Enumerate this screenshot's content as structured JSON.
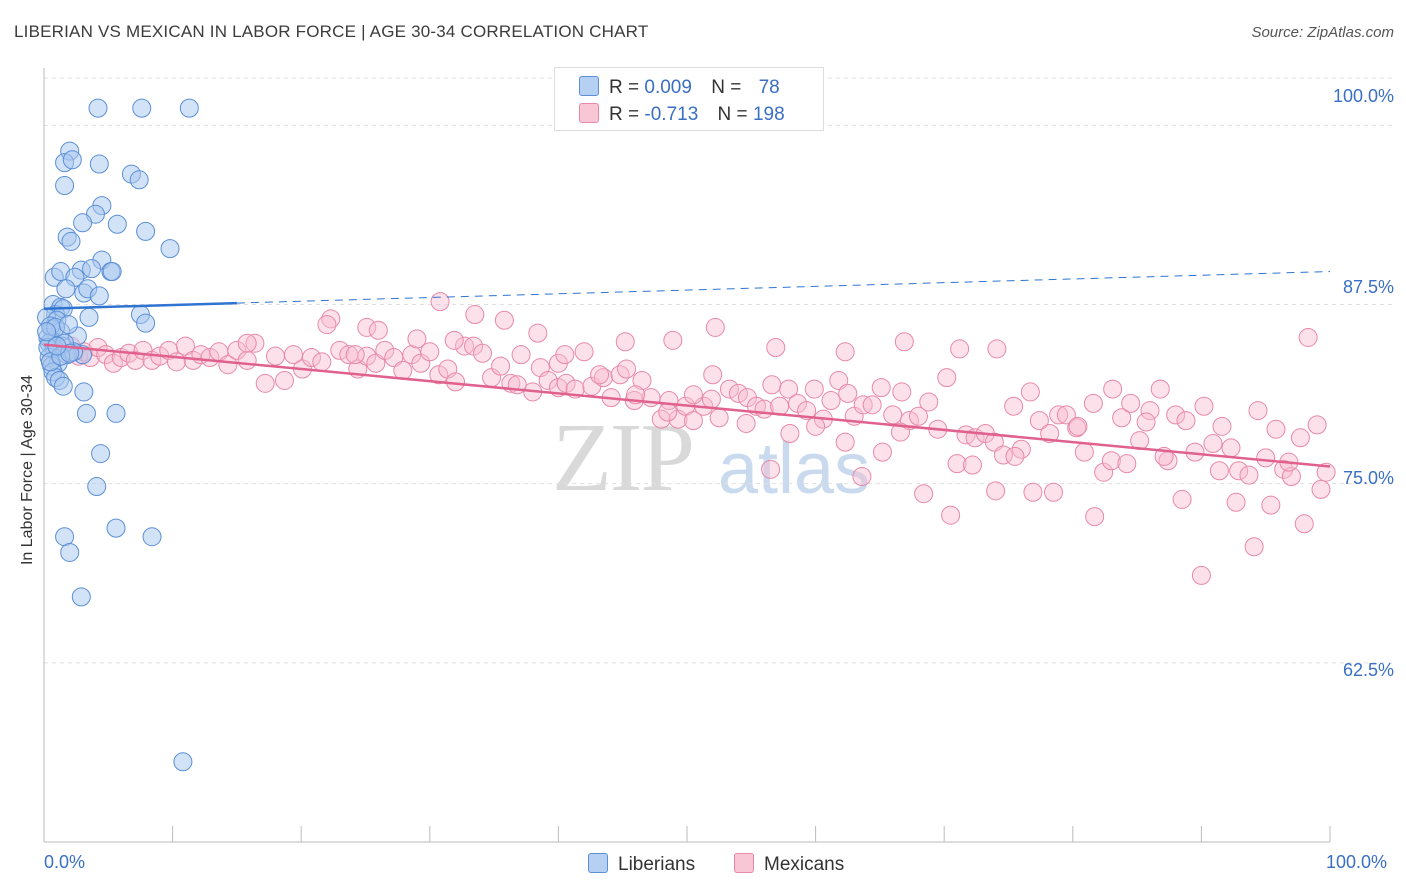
{
  "title": "LIBERIAN VS MEXICAN IN LABOR FORCE | AGE 30-34 CORRELATION CHART",
  "source": "Source: ZipAtlas.com",
  "watermark": {
    "zip": "ZIP",
    "atlas": "atlas"
  },
  "colors": {
    "liberian_fill": "#a8c8f0",
    "liberian_stroke": "#5b8fd6",
    "liberian_line": "#2f74d0",
    "mexican_fill": "#f8bcd0",
    "mexican_stroke": "#e889a8",
    "mexican_line": "#e0608e",
    "tick_text": "#3a6fc4",
    "grid": "#e0e0e0"
  },
  "legend": {
    "rows": [
      {
        "r_label": "R =",
        "r_value": "0.009",
        "n_label": "N =",
        "n_value": "78"
      },
      {
        "r_label": "R =",
        "r_value": "-0.713",
        "n_label": "N =",
        "n_value": "198"
      }
    ]
  },
  "bottom_legend": [
    "Liberians",
    "Mexicans"
  ],
  "chart_data": {
    "type": "scatter",
    "title": "LIBERIAN VS MEXICAN IN LABOR FORCE | AGE 30-34 CORRELATION CHART",
    "xlabel": "",
    "ylabel": "In Labor Force | Age 30-34",
    "xlim": [
      0,
      100
    ],
    "ylim": [
      50,
      104
    ],
    "x_tick_labels": [
      "0.0%",
      "100.0%"
    ],
    "y_ticks": [
      62.5,
      75.0,
      87.5,
      100.0
    ],
    "y_tick_labels": [
      "62.5%",
      "75.0%",
      "87.5%",
      "100.0%"
    ],
    "grid": true,
    "legend_position": "top-center",
    "series": [
      {
        "name": "Liberians",
        "r": 0.009,
        "n": 78,
        "trend": {
          "x0": 0,
          "y0": 87.2,
          "x1": 15,
          "y1": 87.6,
          "dash_x1": 100,
          "dash_y1": 89.8
        },
        "points": [
          [
            4.2,
            101.2
          ],
          [
            7.6,
            101.2
          ],
          [
            11.3,
            101.2
          ],
          [
            2.0,
            98.2
          ],
          [
            1.6,
            97.4
          ],
          [
            2.2,
            97.6
          ],
          [
            4.3,
            97.3
          ],
          [
            6.8,
            96.6
          ],
          [
            7.4,
            96.2
          ],
          [
            1.6,
            95.8
          ],
          [
            4.5,
            94.4
          ],
          [
            4.0,
            93.8
          ],
          [
            3.0,
            93.2
          ],
          [
            5.7,
            93.1
          ],
          [
            7.9,
            92.6
          ],
          [
            1.8,
            92.2
          ],
          [
            2.1,
            91.9
          ],
          [
            9.8,
            91.4
          ],
          [
            4.5,
            90.6
          ],
          [
            5.2,
            89.8
          ],
          [
            2.9,
            89.9
          ],
          [
            5.3,
            89.8
          ],
          [
            0.8,
            89.4
          ],
          [
            3.7,
            90.0
          ],
          [
            1.3,
            89.8
          ],
          [
            2.4,
            89.4
          ],
          [
            3.1,
            88.3
          ],
          [
            3.4,
            88.6
          ],
          [
            1.7,
            88.6
          ],
          [
            4.3,
            88.1
          ],
          [
            0.7,
            87.5
          ],
          [
            1.3,
            87.3
          ],
          [
            0.9,
            86.8
          ],
          [
            1.5,
            87.2
          ],
          [
            0.2,
            86.6
          ],
          [
            3.5,
            86.6
          ],
          [
            1.0,
            86.4
          ],
          [
            7.5,
            86.8
          ],
          [
            7.9,
            86.2
          ],
          [
            0.6,
            85.8
          ],
          [
            1.3,
            85.6
          ],
          [
            2.6,
            85.3
          ],
          [
            0.6,
            85.0
          ],
          [
            0.4,
            84.8
          ],
          [
            1.4,
            84.6
          ],
          [
            0.8,
            84.4
          ],
          [
            3.0,
            84.0
          ],
          [
            1.8,
            84.0
          ],
          [
            0.4,
            83.8
          ],
          [
            1.1,
            83.4
          ],
          [
            0.6,
            83.2
          ],
          [
            0.7,
            82.8
          ],
          [
            0.9,
            82.4
          ],
          [
            1.2,
            82.2
          ],
          [
            1.5,
            81.8
          ],
          [
            3.1,
            81.4
          ],
          [
            0.3,
            85.2
          ],
          [
            2.3,
            84.2
          ],
          [
            1.6,
            84.8
          ],
          [
            0.5,
            86.0
          ],
          [
            0.9,
            85.9
          ],
          [
            1.9,
            86.1
          ],
          [
            3.3,
            79.9
          ],
          [
            5.6,
            79.9
          ],
          [
            4.4,
            77.1
          ],
          [
            4.1,
            74.8
          ],
          [
            5.6,
            71.9
          ],
          [
            8.4,
            71.3
          ],
          [
            1.6,
            71.3
          ],
          [
            2.0,
            70.2
          ],
          [
            2.9,
            67.1
          ],
          [
            10.8,
            55.6
          ],
          [
            0.3,
            84.5
          ],
          [
            0.5,
            83.5
          ],
          [
            1.3,
            83.9
          ],
          [
            2.0,
            84.1
          ],
          [
            1.0,
            84.6
          ],
          [
            0.2,
            85.6
          ]
        ]
      },
      {
        "name": "Mexicans",
        "r": -0.713,
        "n": 198,
        "trend": {
          "x0": 0,
          "y0": 84.7,
          "x1": 100,
          "y1": 76.2
        },
        "points": [
          [
            0.5,
            83.5
          ],
          [
            1.0,
            84.6
          ],
          [
            1.6,
            84.1
          ],
          [
            2.1,
            84.6
          ],
          [
            2.7,
            83.9
          ],
          [
            3.1,
            84.2
          ],
          [
            3.6,
            83.8
          ],
          [
            4.2,
            84.5
          ],
          [
            4.8,
            84.0
          ],
          [
            5.4,
            83.4
          ],
          [
            6.0,
            83.8
          ],
          [
            6.6,
            84.1
          ],
          [
            7.1,
            83.6
          ],
          [
            7.7,
            84.3
          ],
          [
            8.4,
            83.6
          ],
          [
            9.0,
            83.9
          ],
          [
            9.7,
            84.3
          ],
          [
            10.3,
            83.5
          ],
          [
            11.0,
            84.6
          ],
          [
            11.6,
            83.6
          ],
          [
            12.2,
            84.0
          ],
          [
            12.9,
            83.8
          ],
          [
            13.6,
            84.2
          ],
          [
            14.3,
            83.3
          ],
          [
            15.0,
            84.3
          ],
          [
            15.8,
            83.6
          ],
          [
            16.4,
            84.8
          ],
          [
            17.2,
            82.0
          ],
          [
            18.0,
            83.9
          ],
          [
            18.7,
            82.2
          ],
          [
            19.4,
            84.0
          ],
          [
            20.1,
            83.0
          ],
          [
            20.8,
            83.8
          ],
          [
            21.6,
            83.5
          ],
          [
            22.3,
            86.5
          ],
          [
            23.0,
            84.3
          ],
          [
            23.7,
            84.0
          ],
          [
            24.4,
            83.0
          ],
          [
            25.1,
            83.9
          ],
          [
            25.8,
            83.4
          ],
          [
            26.5,
            84.3
          ],
          [
            27.2,
            83.8
          ],
          [
            27.9,
            82.9
          ],
          [
            28.6,
            84.0
          ],
          [
            29.3,
            83.4
          ],
          [
            30.0,
            84.2
          ],
          [
            30.7,
            82.6
          ],
          [
            31.4,
            83.0
          ],
          [
            32.0,
            82.1
          ],
          [
            32.7,
            84.6
          ],
          [
            33.4,
            84.6
          ],
          [
            34.1,
            84.1
          ],
          [
            34.8,
            82.4
          ],
          [
            35.5,
            83.2
          ],
          [
            36.3,
            82.0
          ],
          [
            37.1,
            84.0
          ],
          [
            38.0,
            81.4
          ],
          [
            38.6,
            83.1
          ],
          [
            39.2,
            82.2
          ],
          [
            40.0,
            81.7
          ],
          [
            40.6,
            82.0
          ],
          [
            41.3,
            81.6
          ],
          [
            42.0,
            84.2
          ],
          [
            42.6,
            81.8
          ],
          [
            43.5,
            82.4
          ],
          [
            44.1,
            81.0
          ],
          [
            44.8,
            82.6
          ],
          [
            45.3,
            83.0
          ],
          [
            45.9,
            80.8
          ],
          [
            46.5,
            82.2
          ],
          [
            47.2,
            81.0
          ],
          [
            48.0,
            79.5
          ],
          [
            48.6,
            80.8
          ],
          [
            49.3,
            79.5
          ],
          [
            49.9,
            80.4
          ],
          [
            50.5,
            79.4
          ],
          [
            51.3,
            80.4
          ],
          [
            51.9,
            80.9
          ],
          [
            52.5,
            79.6
          ],
          [
            53.3,
            81.6
          ],
          [
            54.0,
            81.3
          ],
          [
            54.7,
            81.0
          ],
          [
            55.4,
            80.4
          ],
          [
            56.0,
            80.2
          ],
          [
            56.6,
            81.9
          ],
          [
            57.2,
            80.4
          ],
          [
            57.9,
            81.6
          ],
          [
            58.6,
            80.6
          ],
          [
            59.3,
            80.1
          ],
          [
            59.9,
            81.6
          ],
          [
            60.6,
            79.5
          ],
          [
            61.2,
            80.8
          ],
          [
            61.8,
            82.2
          ],
          [
            62.5,
            81.3
          ],
          [
            63.0,
            79.7
          ],
          [
            63.7,
            80.5
          ],
          [
            64.4,
            80.5
          ],
          [
            65.1,
            81.7
          ],
          [
            66.0,
            79.8
          ],
          [
            66.7,
            81.4
          ],
          [
            67.3,
            79.4
          ],
          [
            68.0,
            79.7
          ],
          [
            68.8,
            80.7
          ],
          [
            69.5,
            78.8
          ],
          [
            70.2,
            82.4
          ],
          [
            71.0,
            76.4
          ],
          [
            71.7,
            78.4
          ],
          [
            72.4,
            78.2
          ],
          [
            73.2,
            78.5
          ],
          [
            73.9,
            77.9
          ],
          [
            74.6,
            77.0
          ],
          [
            75.4,
            80.4
          ],
          [
            76.0,
            77.4
          ],
          [
            76.7,
            81.4
          ],
          [
            77.4,
            79.4
          ],
          [
            78.2,
            78.5
          ],
          [
            78.9,
            79.8
          ],
          [
            79.5,
            79.8
          ],
          [
            80.3,
            78.9
          ],
          [
            80.9,
            77.2
          ],
          [
            81.6,
            80.6
          ],
          [
            82.4,
            75.8
          ],
          [
            83.1,
            81.6
          ],
          [
            83.8,
            79.6
          ],
          [
            84.5,
            80.6
          ],
          [
            85.2,
            78.0
          ],
          [
            86.0,
            80.1
          ],
          [
            86.8,
            81.6
          ],
          [
            87.4,
            76.6
          ],
          [
            88.0,
            79.8
          ],
          [
            88.8,
            79.4
          ],
          [
            89.5,
            77.2
          ],
          [
            90.2,
            80.4
          ],
          [
            90.9,
            77.8
          ],
          [
            91.6,
            79.0
          ],
          [
            92.3,
            77.5
          ],
          [
            92.9,
            75.9
          ],
          [
            93.7,
            75.6
          ],
          [
            94.4,
            80.1
          ],
          [
            95.0,
            76.8
          ],
          [
            95.8,
            78.8
          ],
          [
            96.4,
            76.0
          ],
          [
            97.0,
            75.5
          ],
          [
            97.7,
            78.2
          ],
          [
            98.3,
            85.2
          ],
          [
            99.0,
            79.1
          ],
          [
            99.7,
            75.8
          ],
          [
            15.8,
            84.8
          ],
          [
            24.2,
            84.0
          ],
          [
            31.9,
            85.0
          ],
          [
            36.8,
            81.9
          ],
          [
            40.0,
            83.4
          ],
          [
            43.2,
            82.6
          ],
          [
            46.0,
            81.2
          ],
          [
            48.5,
            80.0
          ],
          [
            50.5,
            81.2
          ],
          [
            52.0,
            82.6
          ],
          [
            54.6,
            79.2
          ],
          [
            56.5,
            76.0
          ],
          [
            58.0,
            78.5
          ],
          [
            60.0,
            79.0
          ],
          [
            62.3,
            77.9
          ],
          [
            63.6,
            75.5
          ],
          [
            65.2,
            77.2
          ],
          [
            66.6,
            78.6
          ],
          [
            68.4,
            74.3
          ],
          [
            70.5,
            72.8
          ],
          [
            72.2,
            76.3
          ],
          [
            74.0,
            74.5
          ],
          [
            75.5,
            76.9
          ],
          [
            76.9,
            74.4
          ],
          [
            78.5,
            74.4
          ],
          [
            80.4,
            79.0
          ],
          [
            81.7,
            72.7
          ],
          [
            83.0,
            76.6
          ],
          [
            84.2,
            76.4
          ],
          [
            85.7,
            79.3
          ],
          [
            87.1,
            76.9
          ],
          [
            88.5,
            73.9
          ],
          [
            90.0,
            68.6
          ],
          [
            91.4,
            75.9
          ],
          [
            92.7,
            73.7
          ],
          [
            94.1,
            70.6
          ],
          [
            95.4,
            73.5
          ],
          [
            96.8,
            76.5
          ],
          [
            98.0,
            72.2
          ],
          [
            99.3,
            74.6
          ],
          [
            22.0,
            86.1
          ],
          [
            25.1,
            85.9
          ],
          [
            26.0,
            85.7
          ],
          [
            29.0,
            85.1
          ],
          [
            30.8,
            87.7
          ],
          [
            33.5,
            86.8
          ],
          [
            35.8,
            86.4
          ],
          [
            38.4,
            85.5
          ],
          [
            40.5,
            84.0
          ],
          [
            45.2,
            84.9
          ],
          [
            48.9,
            85.0
          ],
          [
            52.2,
            85.9
          ],
          [
            56.9,
            84.5
          ],
          [
            62.3,
            84.2
          ],
          [
            66.9,
            84.9
          ],
          [
            71.2,
            84.4
          ],
          [
            74.1,
            84.4
          ]
        ]
      }
    ]
  }
}
